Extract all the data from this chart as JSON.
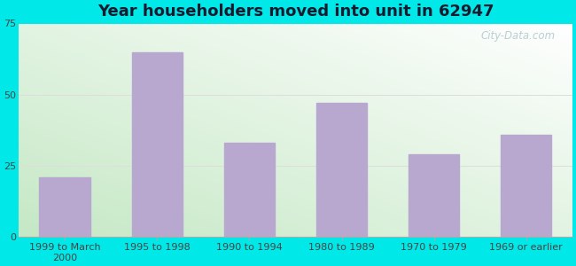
{
  "title": "Year householders moved into unit in 62947",
  "categories": [
    "1999 to March\n2000",
    "1995 to 1998",
    "1990 to 1994",
    "1980 to 1989",
    "1970 to 1979",
    "1969 or earlier"
  ],
  "values": [
    21,
    65,
    33,
    47,
    29,
    36
  ],
  "bar_color": "#b8a8d0",
  "ylim": [
    0,
    75
  ],
  "yticks": [
    0,
    25,
    50,
    75
  ],
  "background_outer": "#00e8e8",
  "grid_color": "#dddddd",
  "title_fontsize": 13,
  "tick_fontsize": 8,
  "watermark": "City-Data.com",
  "grad_colors": [
    "#c5e8c5",
    "#f0f8ff"
  ],
  "title_color": "#1a1a2e"
}
